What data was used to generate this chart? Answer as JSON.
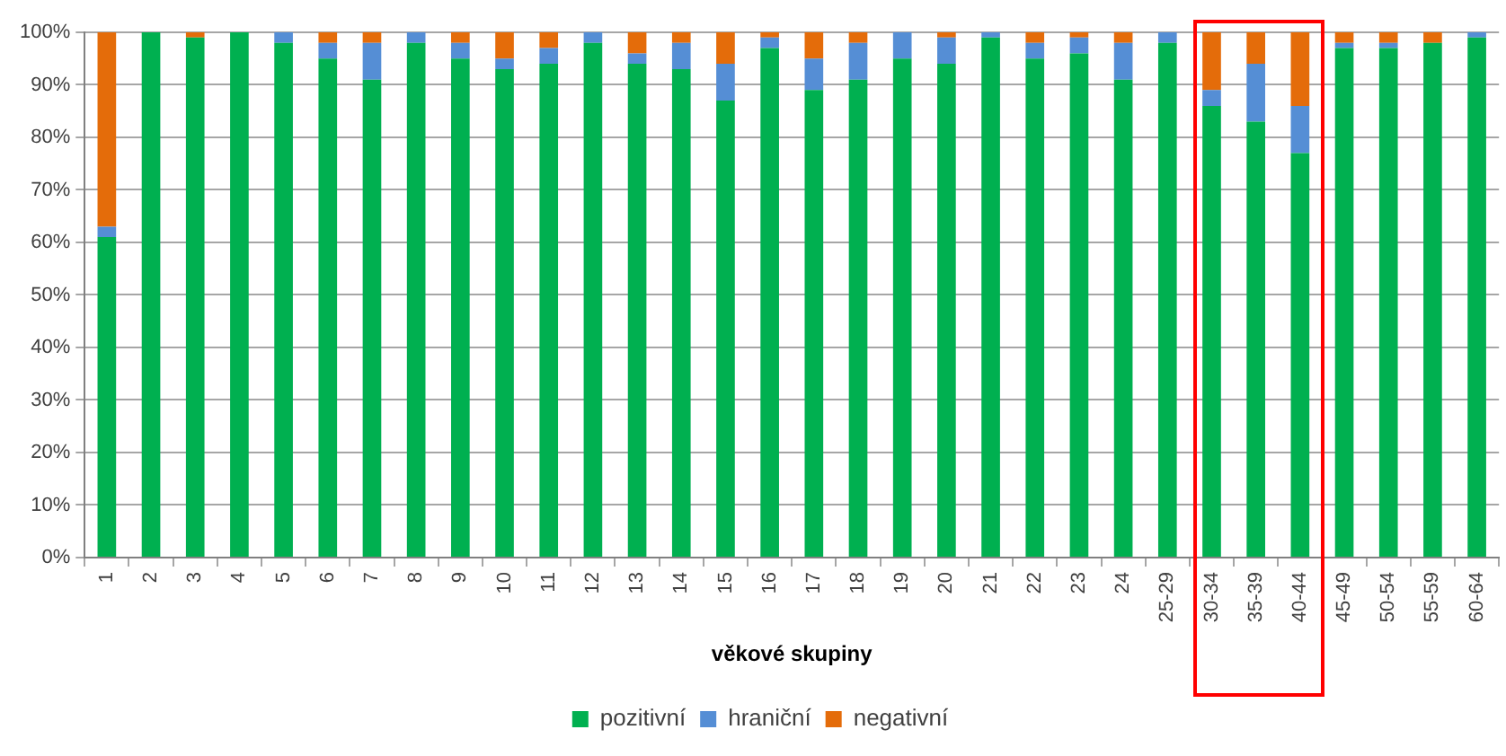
{
  "chart_data": {
    "type": "bar",
    "stacked": true,
    "xlabel": "věkové skupiny",
    "categories": [
      "1",
      "2",
      "3",
      "4",
      "5",
      "6",
      "7",
      "8",
      "9",
      "10",
      "11",
      "12",
      "13",
      "14",
      "15",
      "16",
      "17",
      "18",
      "19",
      "20",
      "21",
      "22",
      "23",
      "24",
      "25-29",
      "30-34",
      "35-39",
      "40-44",
      "45-49",
      "50-54",
      "55-59",
      "60-64"
    ],
    "series": [
      {
        "name": "pozitivní",
        "color": "#00b050",
        "values": [
          61,
          100,
          99,
          100,
          98,
          95,
          91,
          98,
          95,
          93,
          94,
          98,
          94,
          93,
          87,
          97,
          89,
          91,
          95,
          94,
          99,
          95,
          96,
          91,
          98,
          86,
          83,
          77,
          97,
          97,
          98,
          99
        ]
      },
      {
        "name": "hraniční",
        "color": "#558ed5",
        "values": [
          2,
          0,
          0,
          0,
          2,
          3,
          7,
          2,
          3,
          2,
          3,
          2,
          2,
          5,
          7,
          2,
          6,
          7,
          5,
          5,
          1,
          3,
          3,
          7,
          2,
          3,
          11,
          9,
          1,
          1,
          0,
          1
        ]
      },
      {
        "name": "negativní",
        "color": "#e46c0a",
        "values": [
          37,
          0,
          1,
          0,
          0,
          2,
          2,
          0,
          2,
          5,
          3,
          0,
          4,
          2,
          6,
          1,
          5,
          2,
          0,
          1,
          0,
          2,
          1,
          2,
          0,
          11,
          6,
          14,
          2,
          2,
          2,
          0
        ]
      }
    ],
    "ylim": [
      0,
      100
    ],
    "yticks": [
      {
        "value": 0,
        "label": "0%"
      },
      {
        "value": 10,
        "label": "10%"
      },
      {
        "value": 20,
        "label": "20%"
      },
      {
        "value": 30,
        "label": "30%"
      },
      {
        "value": 40,
        "label": "40%"
      },
      {
        "value": 50,
        "label": "50%"
      },
      {
        "value": 60,
        "label": "60%"
      },
      {
        "value": 70,
        "label": "70%"
      },
      {
        "value": 80,
        "label": "80%"
      },
      {
        "value": 90,
        "label": "90%"
      },
      {
        "value": 100,
        "label": "100%"
      }
    ],
    "grid": "y",
    "legend": "bottom"
  }
}
